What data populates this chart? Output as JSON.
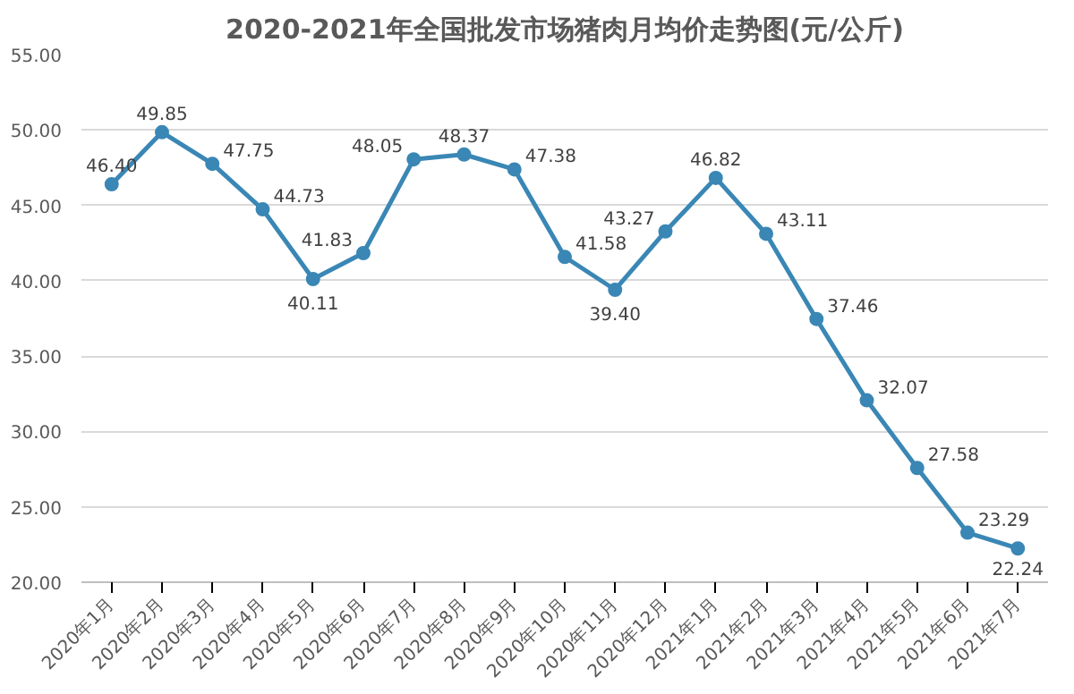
{
  "chart_data": {
    "type": "line",
    "title": "2020-2021年全国批发市场猪肉月均价走势图(元/公斤)",
    "categories": [
      "2020年1月",
      "2020年2月",
      "2020年3月",
      "2020年4月",
      "2020年5月",
      "2020年6月",
      "2020年7月",
      "2020年8月",
      "2020年9月",
      "2020年10月",
      "2020年11月",
      "2020年12月",
      "2021年1月",
      "2021年2月",
      "2021年3月",
      "2021年4月",
      "2021年5月",
      "2021年6月",
      "2021年7月"
    ],
    "series": [
      {
        "color": "#3a87b5",
        "values": [
          46.4,
          49.85,
          47.75,
          44.73,
          40.11,
          41.83,
          48.05,
          48.37,
          47.38,
          41.58,
          39.4,
          43.27,
          46.82,
          43.11,
          37.46,
          32.07,
          27.58,
          23.29,
          22.24
        ],
        "value_labels": [
          "46.40",
          "49.85",
          "47.75",
          "44.73",
          "40.11",
          "41.83",
          "48.05",
          "48.37",
          "47.38",
          "41.58",
          "39.40",
          "43.27",
          "46.82",
          "43.11",
          "37.46",
          "32.07",
          "27.58",
          "23.29",
          "22.24"
        ]
      }
    ],
    "ylim": [
      20,
      55
    ],
    "yticks": [
      {
        "value": 20,
        "label": "20.00"
      },
      {
        "value": 25,
        "label": "25.00"
      },
      {
        "value": 30,
        "label": "30.00"
      },
      {
        "value": 35,
        "label": "35.00"
      },
      {
        "value": 40,
        "label": "40.00"
      },
      {
        "value": 45,
        "label": "45.00"
      },
      {
        "value": 50,
        "label": "50.00"
      },
      {
        "value": 55,
        "label": "55.00"
      }
    ],
    "grid": "y",
    "marker": "circle",
    "line_style": "solid"
  }
}
